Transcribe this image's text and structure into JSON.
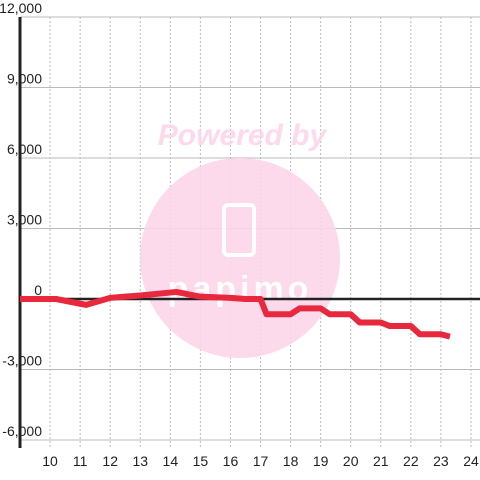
{
  "chart_data": {
    "type": "line",
    "watermark": "Powered by",
    "logo_text": "papimo",
    "x": [
      9,
      10.2,
      11.2,
      12,
      13,
      14.2,
      15,
      16,
      16.5,
      17,
      17.2,
      18,
      18.3,
      19,
      19.3,
      20,
      20.3,
      21,
      21.3,
      22,
      22.3,
      23,
      23.3
    ],
    "series": [
      {
        "color": "#e8283c",
        "values": [
          0,
          0,
          -250,
          50,
          150,
          300,
          100,
          50,
          0,
          0,
          -650,
          -650,
          -400,
          -400,
          -650,
          -650,
          -1000,
          -1000,
          -1150,
          -1150,
          -1500,
          -1500,
          -1600
        ]
      }
    ],
    "xlim": [
      9,
      24.3
    ],
    "xticks": [
      10,
      11,
      12,
      13,
      14,
      15,
      16,
      17,
      18,
      19,
      20,
      21,
      22,
      23,
      24
    ],
    "ylim": [
      -6000,
      12000
    ],
    "yticks": [
      {
        "value": -6000,
        "label": "-6,000"
      },
      {
        "value": -3000,
        "label": "-3,000"
      },
      0,
      {
        "value": 3000,
        "label": "3,000"
      },
      {
        "value": 6000,
        "label": "6,000"
      },
      {
        "value": 9000,
        "label": "9,000"
      },
      {
        "value": 12000,
        "label": "12,000"
      }
    ],
    "grid": true
  }
}
